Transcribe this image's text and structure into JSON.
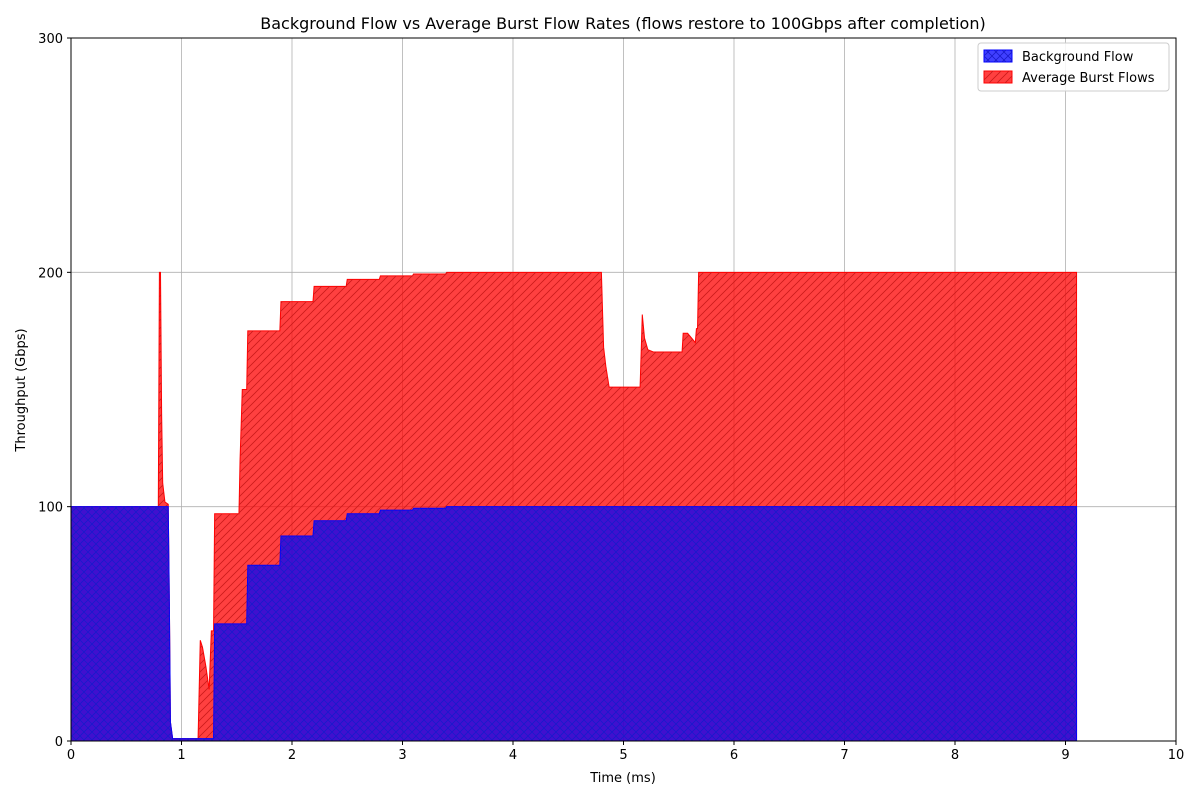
{
  "chart_data": {
    "type": "area",
    "stacked": true,
    "title": "Background Flow vs Average Burst Flow Rates (flows restore to 100Gbps after completion)",
    "xlabel": "Time (ms)",
    "ylabel": "Throughput (Gbps)",
    "xlim": [
      0,
      10
    ],
    "ylim": [
      0,
      300
    ],
    "xticks": [
      0,
      1,
      2,
      3,
      4,
      5,
      6,
      7,
      8,
      9,
      10
    ],
    "yticks": [
      0,
      100,
      200,
      300
    ],
    "grid": true,
    "legend_position": "top-right",
    "series": [
      {
        "name": "Background Flow",
        "color": "#0000ff",
        "hatch": "crosshatch",
        "points": [
          [
            0,
            100
          ],
          [
            0.88,
            100
          ],
          [
            0.89,
            60
          ],
          [
            0.9,
            8
          ],
          [
            0.92,
            1
          ],
          [
            1.29,
            1
          ],
          [
            1.3,
            50
          ],
          [
            1.59,
            50
          ],
          [
            1.6,
            75
          ],
          [
            1.89,
            75
          ],
          [
            1.9,
            87.5
          ],
          [
            2.19,
            87.5
          ],
          [
            2.2,
            94
          ],
          [
            2.49,
            94
          ],
          [
            2.5,
            97
          ],
          [
            2.79,
            97
          ],
          [
            2.8,
            98.5
          ],
          [
            3.09,
            98.5
          ],
          [
            3.1,
            99.3
          ],
          [
            3.39,
            99.3
          ],
          [
            3.4,
            100
          ],
          [
            9.1,
            100
          ]
        ]
      },
      {
        "name": "Average Burst Flows",
        "color": "#ff0000",
        "hatch": "diagonal",
        "points": [
          [
            0,
            100
          ],
          [
            0.79,
            100
          ],
          [
            0.8,
            200
          ],
          [
            0.81,
            200
          ],
          [
            0.82,
            140
          ],
          [
            0.83,
            110
          ],
          [
            0.85,
            102
          ],
          [
            0.88,
            101
          ],
          [
            0.89,
            60
          ],
          [
            0.9,
            8
          ],
          [
            0.92,
            1
          ],
          [
            1.15,
            1
          ],
          [
            1.17,
            43
          ],
          [
            1.19,
            40
          ],
          [
            1.22,
            32
          ],
          [
            1.25,
            22
          ],
          [
            1.27,
            47
          ],
          [
            1.29,
            47
          ],
          [
            1.3,
            97
          ],
          [
            1.52,
            97
          ],
          [
            1.53,
            120
          ],
          [
            1.55,
            150
          ],
          [
            1.59,
            150
          ],
          [
            1.6,
            175
          ],
          [
            1.89,
            175
          ],
          [
            1.9,
            187.5
          ],
          [
            2.19,
            187.5
          ],
          [
            2.2,
            194
          ],
          [
            2.49,
            194
          ],
          [
            2.5,
            197
          ],
          [
            2.79,
            197
          ],
          [
            2.8,
            198.5
          ],
          [
            3.09,
            198.5
          ],
          [
            3.1,
            199.3
          ],
          [
            3.39,
            199.3
          ],
          [
            3.4,
            200
          ],
          [
            4.8,
            200
          ],
          [
            4.82,
            168
          ],
          [
            4.84,
            160
          ],
          [
            4.87,
            151
          ],
          [
            5.15,
            151
          ],
          [
            5.16,
            166
          ],
          [
            5.17,
            182
          ],
          [
            5.19,
            172
          ],
          [
            5.22,
            167
          ],
          [
            5.27,
            166
          ],
          [
            5.53,
            166
          ],
          [
            5.54,
            174
          ],
          [
            5.58,
            174
          ],
          [
            5.65,
            170
          ],
          [
            5.66,
            176
          ],
          [
            5.67,
            176
          ],
          [
            5.68,
            200
          ],
          [
            9.1,
            200
          ]
        ]
      }
    ]
  }
}
